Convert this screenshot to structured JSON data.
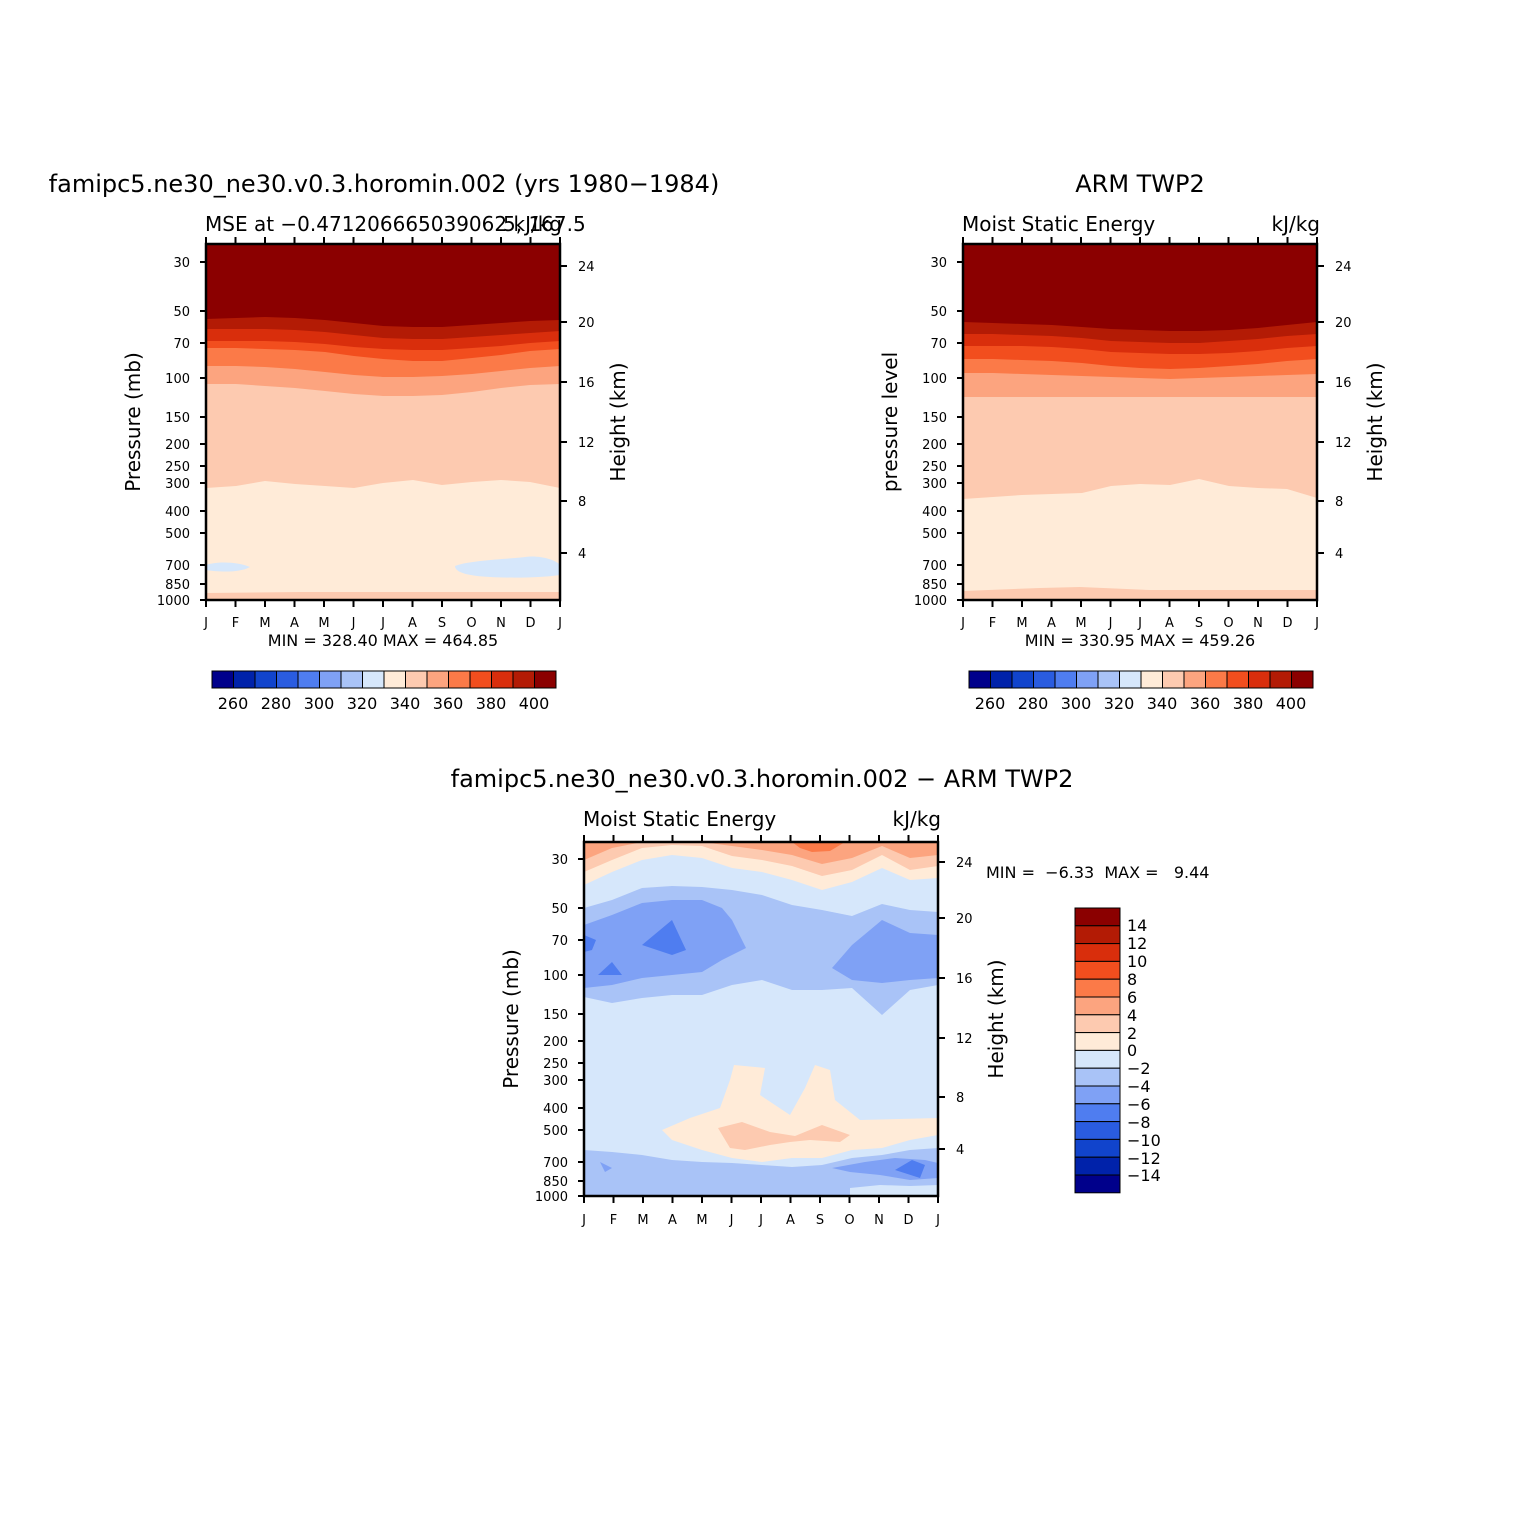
{
  "colors": {
    "sequential": [
      "#00008B",
      "#0022AA",
      "#1144CC",
      "#2A5CE0",
      "#4F7DF0",
      "#7FA1F5",
      "#A9C3F7",
      "#D6E7FB",
      "#FFEBD8",
      "#FDCAB0",
      "#FCA47F",
      "#FB7A48",
      "#F24E1E",
      "#D92E0C",
      "#B31B05",
      "#8B0000"
    ],
    "diverging": [
      "#00008B",
      "#0022AA",
      "#1144CC",
      "#2A5CE0",
      "#4F7DF0",
      "#7FA1F5",
      "#A9C3F7",
      "#D6E7FB",
      "#FFEBD8",
      "#FDCAB0",
      "#FCA47F",
      "#FB7A48",
      "#F24E1E",
      "#D92E0C",
      "#B31B05",
      "#8B0000"
    ]
  },
  "chart_data": [
    {
      "type": "heatmap",
      "title": "famipc5.ne30_ne30.v0.3.horomin.002 (yrs 1980−1984)",
      "subtitle_left": "MSE at −0.471206665039062",
      "subtitle_right": "kJ/kg",
      "subtitle_overlap": "5, 167.5",
      "ylabel": "Pressure (mb)",
      "ylabel_right": "Height (km)",
      "x_ticks": [
        "J",
        "F",
        "M",
        "A",
        "M",
        "J",
        "J",
        "A",
        "S",
        "O",
        "N",
        "D",
        "J"
      ],
      "y_ticks": [
        30,
        50,
        70,
        100,
        150,
        200,
        250,
        300,
        400,
        500,
        700,
        850,
        1000
      ],
      "height_ticks": [
        24,
        20,
        16,
        12,
        8,
        4
      ],
      "stats": "MIN =  328.40  MAX =  464.85",
      "colorbar_labels": [
        "260",
        "280",
        "300",
        "320",
        "340",
        "360",
        "380",
        "400"
      ],
      "levels": [
        250,
        260,
        270,
        280,
        290,
        300,
        310,
        320,
        330,
        340,
        350,
        360,
        370,
        380,
        390,
        400
      ],
      "boundaries_kJkg": [
        {
          "level": 400,
          "p_mb": [
            58,
            57,
            56,
            56,
            57,
            59,
            60,
            61,
            61,
            60,
            59,
            58,
            58
          ]
        },
        {
          "level": 390,
          "p_mb": [
            63,
            62,
            62,
            62,
            63,
            65,
            66,
            67,
            67,
            66,
            65,
            63,
            63
          ]
        },
        {
          "level": 380,
          "p_mb": [
            70,
            69,
            69,
            69,
            70,
            72,
            73,
            74,
            74,
            73,
            72,
            70,
            70
          ]
        },
        {
          "level": 370,
          "p_mb": [
            78,
            78,
            78,
            78,
            80,
            83,
            84,
            85,
            84,
            83,
            81,
            79,
            78
          ]
        },
        {
          "level": 360,
          "p_mb": [
            92,
            92,
            93,
            94,
            97,
            100,
            102,
            102,
            101,
            99,
            96,
            93,
            92
          ]
        },
        {
          "level": 350,
          "p_mb": [
            108,
            108,
            110,
            112,
            116,
            120,
            122,
            122,
            121,
            118,
            114,
            110,
            108
          ]
        },
        {
          "level": 340,
          "p_mb": [
            310,
            305,
            290,
            300,
            305,
            310,
            295,
            285,
            300,
            295,
            290,
            295,
            310
          ]
        },
        {
          "level": 330,
          "p_mb": [
            960,
            960,
            955,
            955,
            955,
            955,
            960,
            960,
            960,
            960,
            960,
            960,
            960
          ]
        }
      ],
      "pools_below_330": [
        {
          "region": "Jan-Feb",
          "p_mb_top": 680,
          "p_mb_bottom": 720
        },
        {
          "region": "Sep-Jan",
          "p_mb_top": 650,
          "p_mb_bottom": 790
        }
      ]
    },
    {
      "type": "heatmap",
      "title": "ARM TWP2",
      "subtitle_left": "Moist Static Energy",
      "subtitle_right": "kJ/kg",
      "ylabel": "pressure level",
      "ylabel_right": "Height (km)",
      "x_ticks": [
        "J",
        "F",
        "M",
        "A",
        "M",
        "J",
        "J",
        "A",
        "S",
        "O",
        "N",
        "D",
        "J"
      ],
      "y_ticks": [
        30,
        50,
        70,
        100,
        150,
        200,
        250,
        300,
        400,
        500,
        700,
        850,
        1000
      ],
      "height_ticks": [
        24,
        20,
        16,
        12,
        8,
        4
      ],
      "stats": "MIN =  330.95  MAX =  459.26",
      "colorbar_labels": [
        "260",
        "280",
        "300",
        "320",
        "340",
        "360",
        "380",
        "400"
      ],
      "levels": [
        250,
        260,
        270,
        280,
        290,
        300,
        310,
        320,
        330,
        340,
        350,
        360,
        370,
        380,
        390,
        400
      ],
      "boundaries_kJkg": [
        {
          "level": 400,
          "p_mb": [
            59,
            58,
            58,
            58,
            59,
            61,
            62,
            63,
            63,
            62,
            61,
            59,
            59
          ]
        },
        {
          "level": 390,
          "p_mb": [
            66,
            66,
            66,
            66,
            67,
            69,
            70,
            71,
            71,
            70,
            69,
            67,
            66
          ]
        },
        {
          "level": 380,
          "p_mb": [
            74,
            74,
            74,
            74,
            75,
            78,
            79,
            80,
            80,
            79,
            78,
            76,
            74
          ]
        },
        {
          "level": 370,
          "p_mb": [
            86,
            86,
            87,
            88,
            90,
            93,
            94,
            95,
            94,
            92,
            90,
            88,
            86
          ]
        },
        {
          "level": 360,
          "p_mb": [
            122,
            122,
            123,
            124,
            125,
            126,
            127,
            127,
            126,
            125,
            124,
            123,
            122
          ]
        },
        {
          "level": 340,
          "p_mb": [
            390,
            380,
            375,
            370,
            365,
            355,
            340,
            340,
            330,
            350,
            350,
            360,
            390
          ]
        },
        {
          "level": 330,
          "p_mb": [
            950,
            950,
            945,
            940,
            940,
            945,
            950,
            950,
            950,
            950,
            950,
            950,
            950
          ]
        }
      ]
    },
    {
      "type": "heatmap",
      "title": "famipc5.ne30_ne30.v0.3.horomin.002 − ARM TWP2",
      "subtitle_left": "Moist Static Energy",
      "subtitle_right": "kJ/kg",
      "ylabel": "Pressure (mb)",
      "ylabel_right": "Height (km)",
      "x_ticks": [
        "J",
        "F",
        "M",
        "A",
        "M",
        "J",
        "J",
        "A",
        "S",
        "O",
        "N",
        "D",
        "J"
      ],
      "y_ticks": [
        30,
        50,
        70,
        100,
        150,
        200,
        250,
        300,
        400,
        500,
        700,
        850,
        1000
      ],
      "height_ticks": [
        24,
        20,
        16,
        12,
        8,
        4
      ],
      "stats": "MIN =  −6.33  MAX =   9.44",
      "colorbar_labels": [
        "14",
        "12",
        "10",
        "8",
        "6",
        "4",
        "2",
        "0",
        "−2",
        "−4",
        "−6",
        "−8",
        "−10",
        "−12",
        "−14"
      ],
      "levels": [
        -14,
        -12,
        -10,
        -8,
        -6,
        -4,
        -2,
        0,
        2,
        4,
        6,
        8,
        10,
        12,
        14
      ],
      "features": [
        {
          "value_range": "6 to 8",
          "p_mb_top": 25,
          "p_mb_bottom": 28
        },
        {
          "value_range": "4 to 6",
          "p_mb_top": 25,
          "p_mb_bottom": 32
        },
        {
          "value_range": "2 to 4",
          "p_mb_top": 28,
          "p_mb_bottom": 38
        },
        {
          "value_range": "0 to 2",
          "p_mb_top": 32,
          "p_mb_bottom": 45
        },
        {
          "value_range": "-2 to 0",
          "p_mb_top": 38,
          "p_mb_bottom": 52
        },
        {
          "value_range": "-4 to -2",
          "p_mb_top": 45,
          "p_mb_bottom": 120
        },
        {
          "value_range": "-6 to -4",
          "p_mb_top": 55,
          "p_mb_bottom": 110
        },
        {
          "value_range": "-8 to -6",
          "p_mb_top": 65,
          "p_mb_bottom": 100
        },
        {
          "value_range": "0 to 2",
          "p_mb_top": 240,
          "p_mb_bottom": 610
        },
        {
          "value_range": "2 to 4",
          "p_mb_top": 470,
          "p_mb_bottom": 580
        },
        {
          "value_range": "-4 to -2",
          "p_mb_top": 680,
          "p_mb_bottom": 960
        },
        {
          "value_range": "-6 to -4",
          "p_mb_top": 740,
          "p_mb_bottom": 820
        }
      ]
    }
  ]
}
